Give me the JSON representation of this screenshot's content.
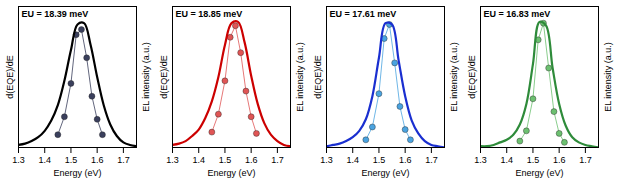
{
  "chart_data": [
    {
      "type": "line",
      "title": "EU = 18.39 meV",
      "x_label": "Energy (eV)",
      "xlim": [
        1.3,
        1.75
      ],
      "xticks": [
        1.3,
        1.4,
        1.5,
        1.6,
        1.7
      ],
      "ylim": [
        0,
        1.1
      ],
      "y2lim": [
        0,
        1.1
      ],
      "tick_labels": "x",
      "grid": false,
      "series": [
        {
          "name": "d(EQE)/dE",
          "type": "scatter",
          "marker": "circle",
          "color": "#3a3f5c",
          "x": [
            1.45,
            1.475,
            1.5,
            1.52,
            1.54,
            1.56,
            1.58,
            1.6,
            1.62
          ],
          "values": [
            0.1,
            0.24,
            0.5,
            0.88,
            0.92,
            0.7,
            0.4,
            0.22,
            0.1
          ]
        },
        {
          "name": "EL intensity (a.u.)",
          "type": "line",
          "axis": "y2",
          "color": "#000000",
          "x": [
            1.3,
            1.325,
            1.35,
            1.375,
            1.4,
            1.425,
            1.45,
            1.475,
            1.5,
            1.525,
            1.55,
            1.575,
            1.6,
            1.625,
            1.65,
            1.675,
            1.7,
            1.725,
            1.75
          ],
          "values": [
            0.02,
            0.03,
            0.05,
            0.08,
            0.13,
            0.21,
            0.33,
            0.52,
            0.76,
            0.96,
            0.97,
            0.8,
            0.55,
            0.33,
            0.18,
            0.09,
            0.04,
            0.02,
            0.01
          ]
        }
      ]
    },
    {
      "type": "line",
      "title": "EU = 18.85 meV",
      "x_label": "Energy (eV)",
      "xlim": [
        1.3,
        1.75
      ],
      "xticks": [
        1.3,
        1.4,
        1.5,
        1.6,
        1.7
      ],
      "ylim": [
        0,
        1.1
      ],
      "y2lim": [
        0,
        1.1
      ],
      "tick_labels": "x",
      "grid": false,
      "series": [
        {
          "name": "d(EQE)/dE",
          "type": "scatter",
          "marker": "circle",
          "color": "#e05555",
          "x": [
            1.45,
            1.475,
            1.5,
            1.52,
            1.54,
            1.56,
            1.58,
            1.6,
            1.62
          ],
          "values": [
            0.12,
            0.26,
            0.52,
            0.86,
            0.95,
            0.74,
            0.44,
            0.24,
            0.11
          ]
        },
        {
          "name": "EL intensity (a.u.)",
          "type": "line",
          "axis": "y2",
          "color": "#cc0000",
          "x": [
            1.3,
            1.325,
            1.35,
            1.375,
            1.4,
            1.425,
            1.45,
            1.475,
            1.5,
            1.525,
            1.55,
            1.575,
            1.6,
            1.625,
            1.65,
            1.675,
            1.7,
            1.725,
            1.75
          ],
          "values": [
            0.02,
            0.03,
            0.05,
            0.09,
            0.14,
            0.23,
            0.36,
            0.55,
            0.8,
            0.97,
            0.98,
            0.82,
            0.56,
            0.34,
            0.19,
            0.1,
            0.05,
            0.02,
            0.01
          ]
        }
      ]
    },
    {
      "type": "line",
      "title": "EU = 17.61 meV",
      "x_label": "Energy (eV)",
      "xlim": [
        1.3,
        1.75
      ],
      "xticks": [
        1.3,
        1.4,
        1.5,
        1.6,
        1.7
      ],
      "ylim": [
        0,
        1.1
      ],
      "y2lim": [
        0,
        1.1
      ],
      "tick_labels": "x",
      "grid": false,
      "series": [
        {
          "name": "d(EQE)/dE",
          "type": "scatter",
          "marker": "circle",
          "color": "#4aa3e0",
          "x": [
            1.45,
            1.475,
            1.5,
            1.52,
            1.54,
            1.56,
            1.58,
            1.6,
            1.62
          ],
          "values": [
            0.06,
            0.16,
            0.42,
            0.85,
            0.96,
            0.66,
            0.32,
            0.14,
            0.06
          ]
        },
        {
          "name": "EL intensity (a.u.)",
          "type": "line",
          "axis": "y2",
          "color": "#1a2fd0",
          "x": [
            1.3,
            1.325,
            1.35,
            1.375,
            1.4,
            1.425,
            1.45,
            1.475,
            1.5,
            1.525,
            1.55,
            1.575,
            1.6,
            1.625,
            1.65,
            1.675,
            1.7,
            1.725,
            1.75
          ],
          "values": [
            0.01,
            0.02,
            0.03,
            0.05,
            0.08,
            0.13,
            0.22,
            0.4,
            0.7,
            0.97,
            0.96,
            0.68,
            0.4,
            0.21,
            0.11,
            0.05,
            0.02,
            0.01,
            0.0
          ]
        }
      ]
    },
    {
      "type": "line",
      "title": "EU = 16.83 meV",
      "x_label": "Energy (eV)",
      "xlim": [
        1.3,
        1.75
      ],
      "xticks": [
        1.3,
        1.4,
        1.5,
        1.6,
        1.7
      ],
      "ylim": [
        0,
        1.1
      ],
      "y2lim": [
        0,
        1.1
      ],
      "tick_labels": "x",
      "grid": false,
      "series": [
        {
          "name": "d(EQE)/dE",
          "type": "scatter",
          "marker": "circle",
          "color": "#6cc070",
          "x": [
            1.45,
            1.475,
            1.5,
            1.52,
            1.54,
            1.56,
            1.58,
            1.6,
            1.62
          ],
          "values": [
            0.05,
            0.13,
            0.38,
            0.84,
            0.97,
            0.62,
            0.28,
            0.11,
            0.04
          ]
        },
        {
          "name": "EL intensity (a.u.)",
          "type": "line",
          "axis": "y2",
          "color": "#2e8b3a",
          "x": [
            1.3,
            1.325,
            1.35,
            1.375,
            1.4,
            1.425,
            1.45,
            1.475,
            1.5,
            1.525,
            1.55,
            1.575,
            1.6,
            1.625,
            1.65,
            1.675,
            1.7,
            1.725,
            1.75
          ],
          "values": [
            0.01,
            0.01,
            0.02,
            0.04,
            0.06,
            0.1,
            0.18,
            0.34,
            0.65,
            0.98,
            0.95,
            0.62,
            0.34,
            0.17,
            0.08,
            0.04,
            0.02,
            0.01,
            0.0
          ]
        }
      ]
    }
  ]
}
